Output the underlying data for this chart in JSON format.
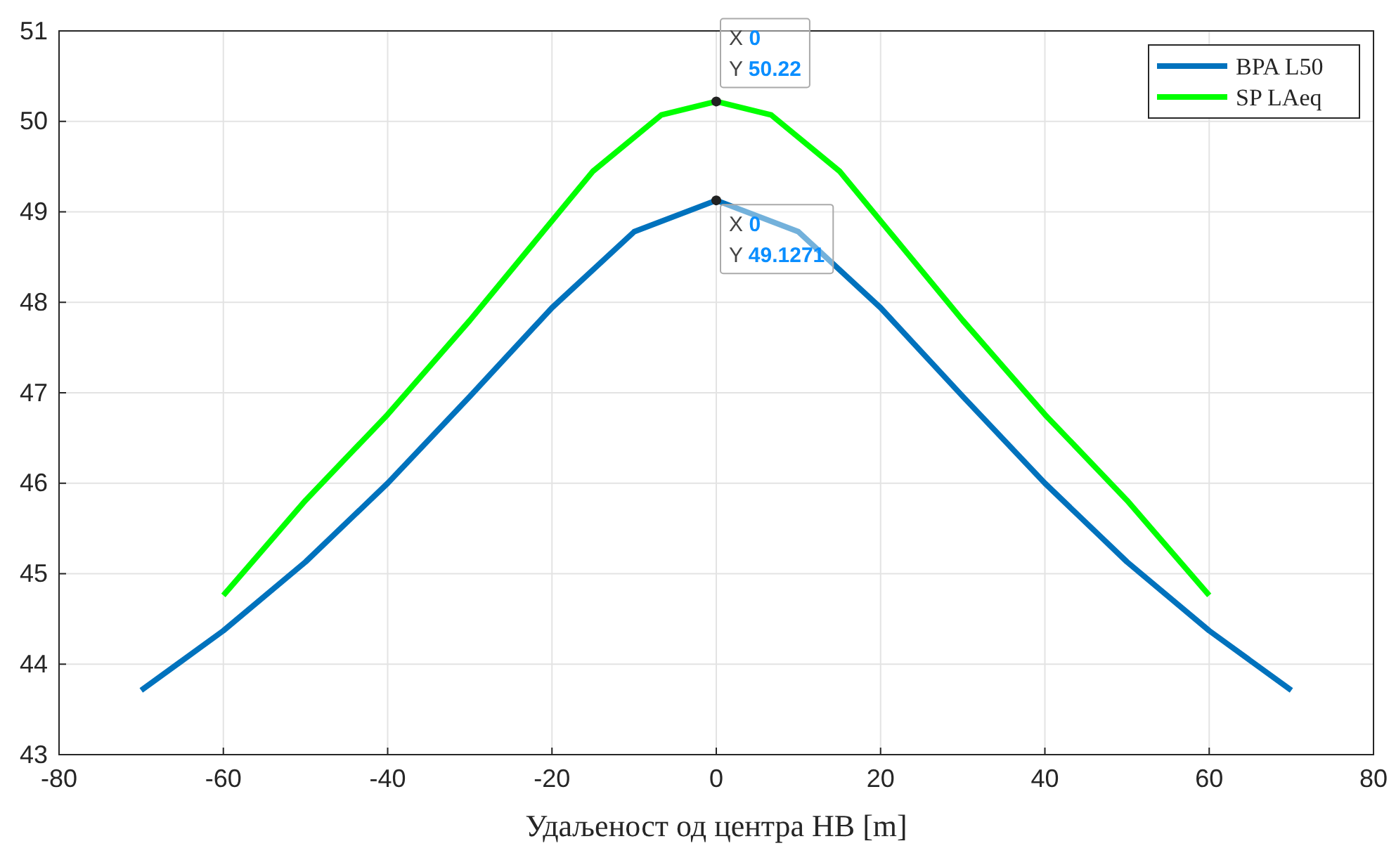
{
  "chart_data": {
    "type": "line",
    "xlabel": "Удаљеност од центра НВ [m]",
    "xlim": [
      -80,
      80
    ],
    "xticks": [
      -80,
      -60,
      -40,
      -20,
      0,
      20,
      40,
      60,
      80
    ],
    "ylim": [
      43,
      51
    ],
    "yticks": [
      43,
      44,
      45,
      46,
      47,
      48,
      49,
      50,
      51
    ],
    "grid": true,
    "legend": "top right",
    "line_style": "solid",
    "marker": "none",
    "series": [
      {
        "name": "BPA L50",
        "color": "#0072bd",
        "x": [
          -70,
          -60,
          -50,
          -40,
          -30,
          -20,
          -10,
          0,
          10,
          20,
          30,
          40,
          50,
          60,
          70
        ],
        "values": [
          43.71,
          44.37,
          45.13,
          46.0,
          46.96,
          47.94,
          48.78,
          49.1271,
          48.78,
          47.94,
          46.96,
          46.0,
          45.13,
          44.37,
          43.71
        ]
      },
      {
        "name": "SP LAeq",
        "color": "#00ff00",
        "x": [
          -60,
          -50,
          -40,
          -30,
          -15,
          -6.7,
          0,
          6.7,
          15,
          30,
          40,
          50,
          60
        ],
        "values": [
          44.76,
          45.81,
          46.76,
          47.8,
          49.45,
          50.07,
          50.22,
          50.07,
          49.45,
          47.8,
          46.76,
          45.81,
          44.76
        ]
      }
    ],
    "annotations": [
      {
        "text": "X 0\nY 50.22",
        "x": 0,
        "y": 50.22
      },
      {
        "text": "X 0\nY 49.1271",
        "x": 0,
        "y": 49.1271
      }
    ]
  }
}
